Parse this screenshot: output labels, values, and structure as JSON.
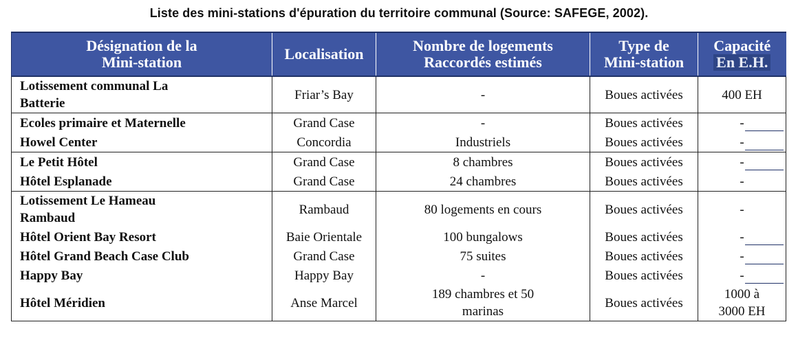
{
  "caption": "Liste des mini-stations d'épuration du territoire communal (Source: SAFEGE, 2002).",
  "headers": {
    "designation": [
      "Désignation de la",
      "Mini-station"
    ],
    "localisation": "Localisation",
    "logements": [
      "Nombre de logements",
      "Raccordés estimés"
    ],
    "type": [
      "Type de",
      "Mini-station"
    ],
    "capacite": [
      "Capacité",
      "En E.H."
    ]
  },
  "rows": [
    {
      "name": [
        "Lotissement communal La",
        "Batterie"
      ],
      "loc": "Friar’s Bay",
      "logements": [
        "-"
      ],
      "type": "Boues activées",
      "capacite": [
        "400 EH"
      ]
    },
    {
      "name": [
        "Ecoles primaire et Maternelle"
      ],
      "loc": "Grand Case",
      "logements": [
        "-"
      ],
      "type": "Boues activées",
      "capacite": [
        "-"
      ]
    },
    {
      "name": [
        "Howel Center"
      ],
      "loc": "Concordia",
      "logements": [
        "Industriels"
      ],
      "type": "Boues activées",
      "capacite": [
        "-"
      ]
    },
    {
      "name": [
        "Le Petit Hôtel"
      ],
      "loc": "Grand Case",
      "logements": [
        "8 chambres"
      ],
      "type": "Boues activées",
      "capacite": [
        "-"
      ]
    },
    {
      "name": [
        "Hôtel Esplanade"
      ],
      "loc": "Grand Case",
      "logements": [
        "24 chambres"
      ],
      "type": "Boues activées",
      "capacite": [
        "-"
      ]
    },
    {
      "name": [
        "Lotissement Le Hameau",
        "Rambaud"
      ],
      "loc": "Rambaud",
      "logements": [
        "80 logements en cours"
      ],
      "type": "Boues activées",
      "capacite": [
        "-"
      ]
    },
    {
      "name": [
        "Hôtel Orient Bay Resort"
      ],
      "loc": "Baie Orientale",
      "logements": [
        "100 bungalows"
      ],
      "type": "Boues activées",
      "capacite": [
        "-"
      ]
    },
    {
      "name": [
        "Hôtel Grand Beach Case Club"
      ],
      "loc": "Grand Case",
      "logements": [
        "75 suites"
      ],
      "type": "Boues activées",
      "capacite": [
        "-"
      ]
    },
    {
      "name": [
        "Happy Bay"
      ],
      "loc": "Happy Bay",
      "logements": [
        "-"
      ],
      "type": "Boues activées",
      "capacite": [
        "-"
      ]
    },
    {
      "name": [
        "Hôtel Méridien"
      ],
      "loc": "Anse Marcel",
      "logements": [
        "189 chambres et 50",
        "marinas"
      ],
      "type": "Boues activées",
      "capacite": [
        "1000 à",
        "3000 EH"
      ]
    }
  ]
}
